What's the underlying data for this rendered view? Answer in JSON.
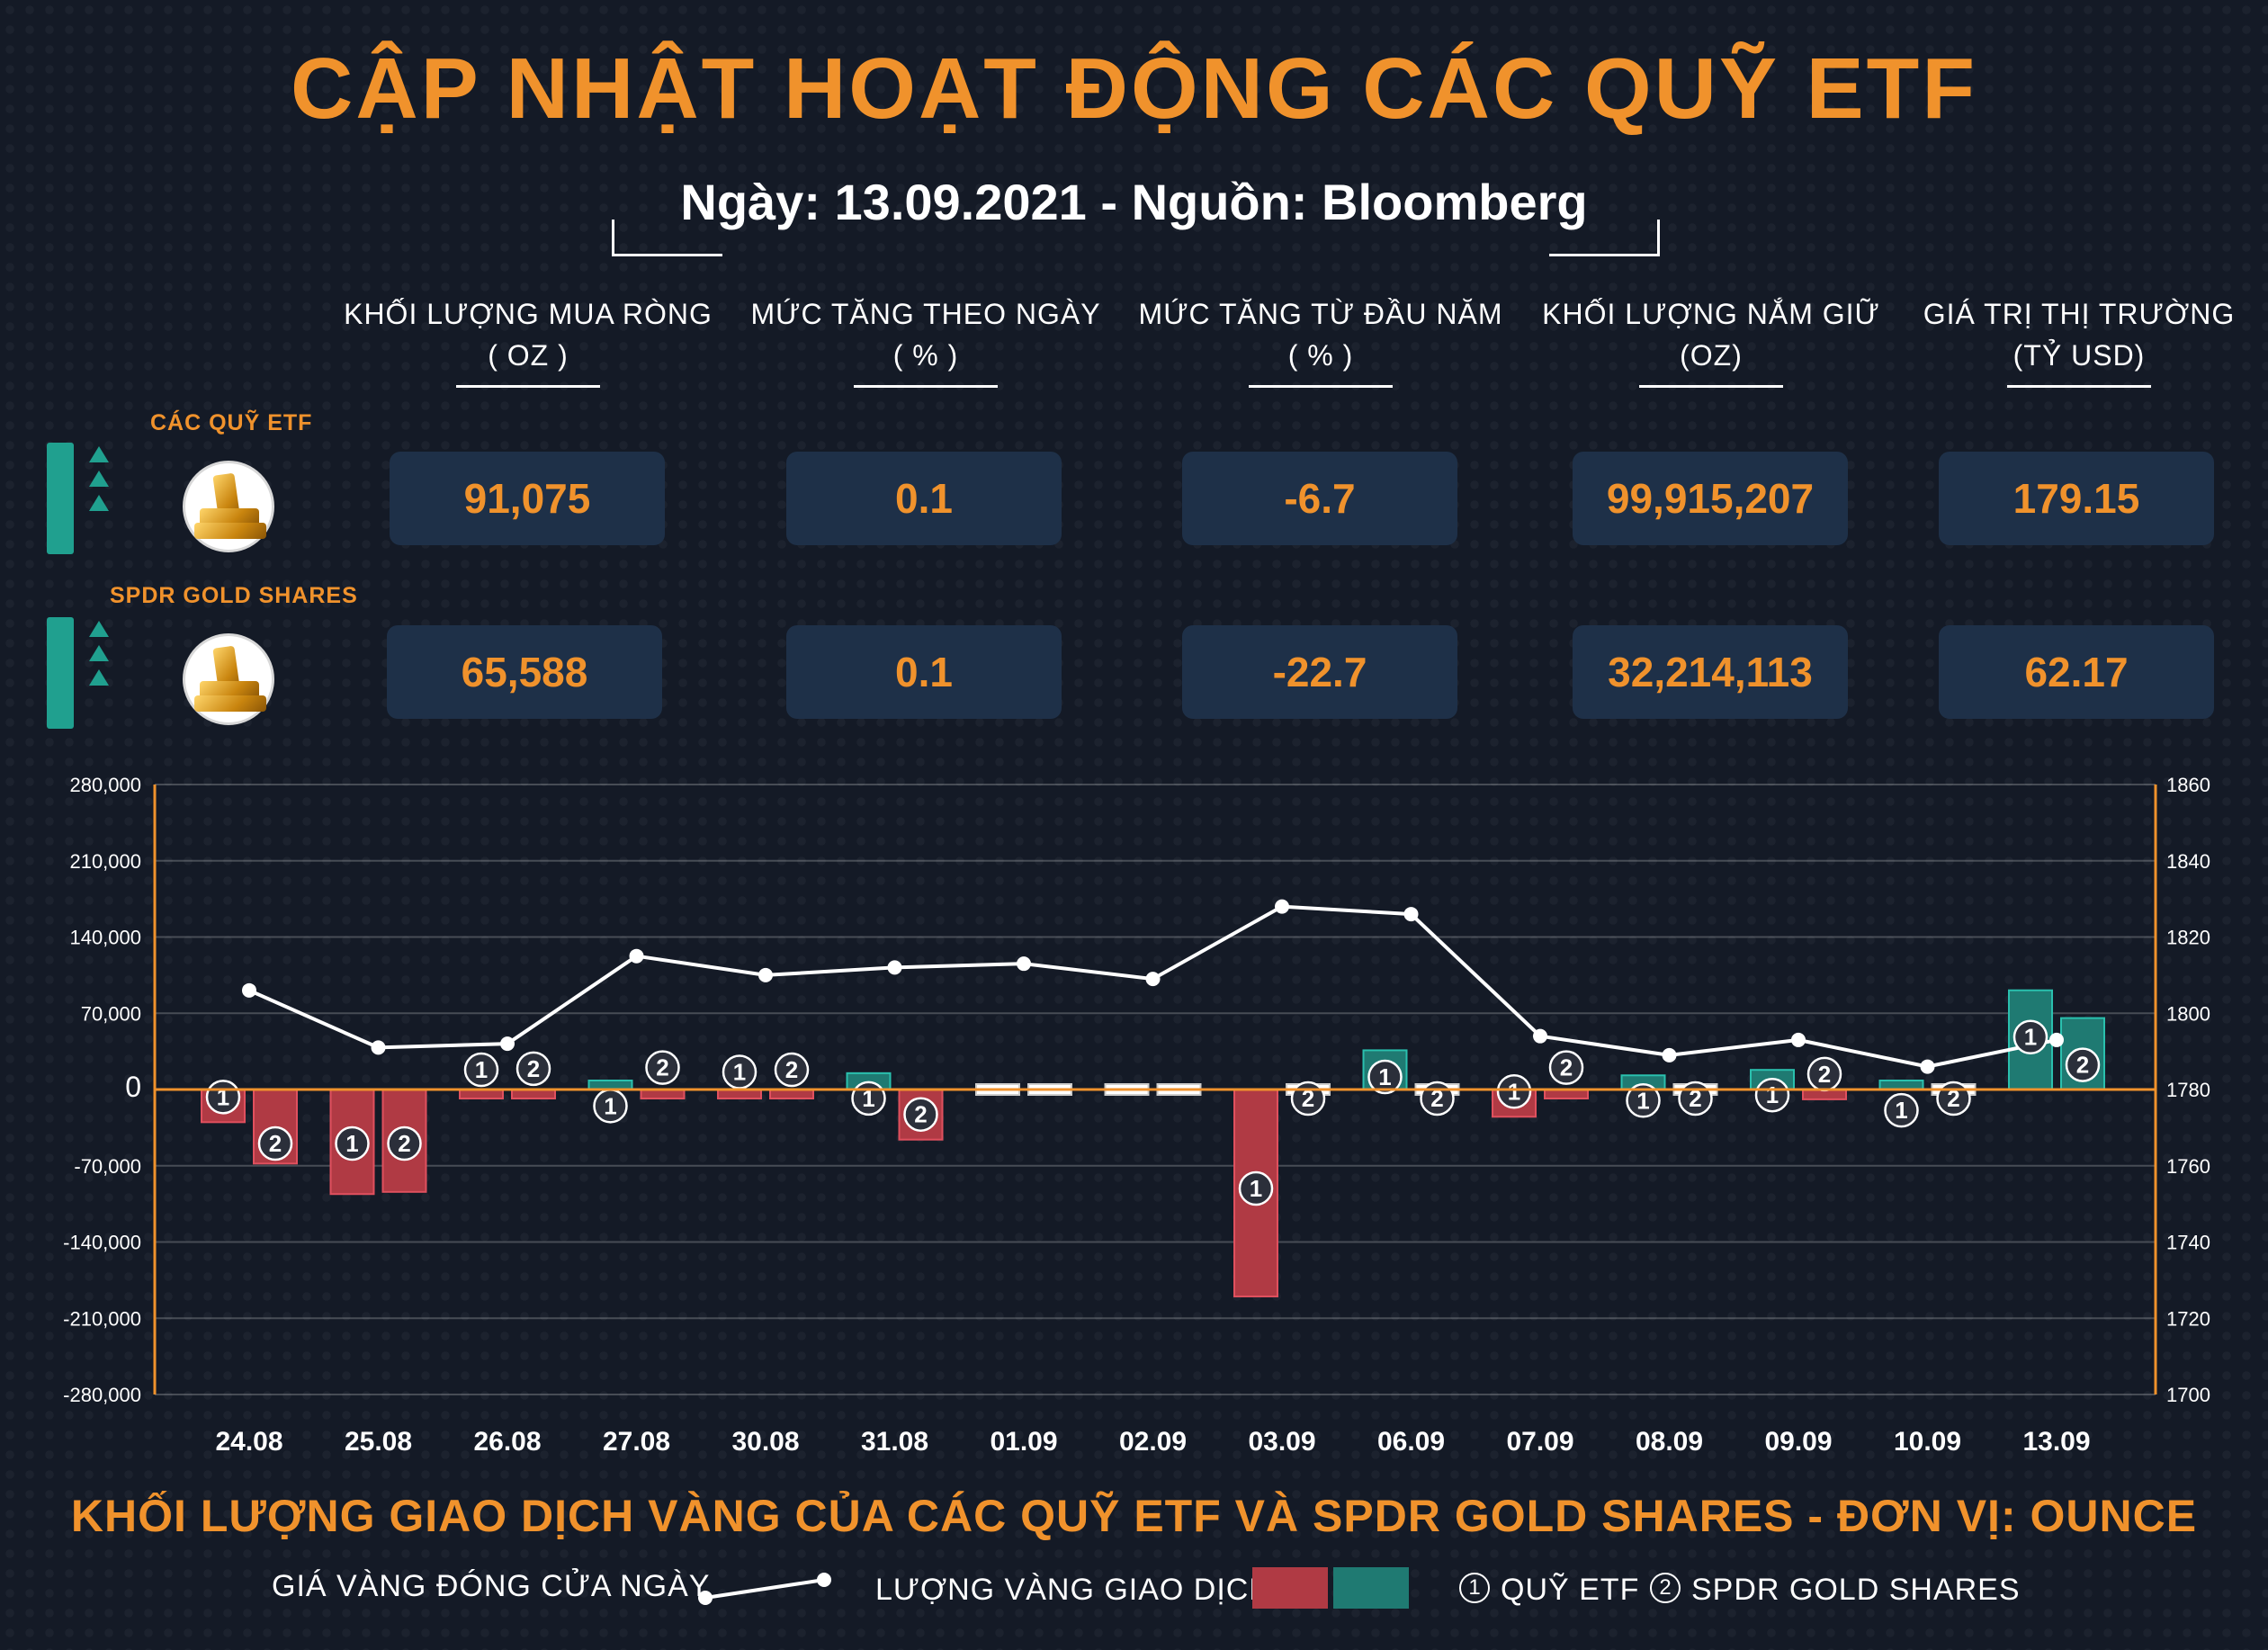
{
  "header": {
    "title": "CẬP NHẬT HOẠT ĐỘNG CÁC QUỸ ETF",
    "subtitle": "Ngày: 13.09.2021 - Nguồn: Bloomberg"
  },
  "columns": [
    {
      "line1": "KHỐI LƯỢNG MUA RÒNG",
      "line2": "( OZ )"
    },
    {
      "line1": "MỨC TĂNG THEO NGÀY",
      "line2": "( % )"
    },
    {
      "line1": "MỨC TĂNG TỪ ĐẦU NĂM",
      "line2": "( % )"
    },
    {
      "line1": "KHỐI LƯỢNG NẮM GIỮ",
      "line2": "(OZ)"
    },
    {
      "line1": "GIÁ TRỊ THỊ TRƯỜNG",
      "line2": "(TỶ USD)"
    }
  ],
  "rows": [
    {
      "label": "CÁC QUỸ ETF",
      "values": [
        "91,075",
        "0.1",
        "-6.7",
        "99,915,207",
        "179.15"
      ]
    },
    {
      "label": "SPDR GOLD SHARES",
      "values": [
        "65,588",
        "0.1",
        "-22.7",
        "32,214,113",
        "62.17"
      ]
    }
  ],
  "colors": {
    "accent": "#f0922c",
    "background": "#141a26",
    "box": "#1e3048",
    "buy": "#1f7a72",
    "sell": "#b03a44",
    "line": "#ffffff"
  },
  "chart_data": {
    "type": "bar",
    "title": "KHỐI LƯỢNG GIAO DỊCH VÀNG CỦA CÁC QUỸ ETF VÀ SPDR GOLD SHARES - ĐƠN VỊ: OUNCE",
    "categories": [
      "24.08",
      "25.08",
      "26.08",
      "27.08",
      "30.08",
      "31.08",
      "01.09",
      "02.09",
      "03.09",
      "06.09",
      "07.09",
      "08.09",
      "09.09",
      "10.09",
      "13.09"
    ],
    "series": [
      {
        "name": "QUỸ ETF",
        "marker": "1",
        "values": [
          -30000,
          -96000,
          -5000,
          8000,
          -7000,
          15000,
          0,
          0,
          -190000,
          36000,
          -25000,
          13000,
          18000,
          4000,
          91075
        ]
      },
      {
        "name": "SPDR GOLD SHARES",
        "marker": "2",
        "values": [
          -68000,
          -94000,
          -4000,
          -3000,
          -5000,
          -46000,
          0,
          0,
          0,
          0,
          -3000,
          0,
          -9000,
          0,
          65588
        ]
      }
    ],
    "line_series": {
      "name": "GIÁ VÀNG ĐÓNG CỬA NGÀY",
      "values": [
        1806,
        1791,
        1792,
        1815,
        1810,
        1812,
        1813,
        1809,
        1828,
        1826,
        1794,
        1789,
        1793,
        1786,
        1793
      ]
    },
    "y_left": {
      "ticks": [
        280000,
        210000,
        140000,
        70000,
        0,
        -70000,
        -140000,
        -210000,
        -280000
      ],
      "labels": [
        "280,000",
        "210,000",
        "140,000",
        "70,000",
        "0",
        "-70,000",
        "-140,000",
        "-210,000",
        "-280,000"
      ],
      "range": [
        -280000,
        280000
      ]
    },
    "y_right": {
      "ticks": [
        1860,
        1840,
        1820,
        1800,
        1780,
        1760,
        1740,
        1720,
        1700
      ],
      "labels": [
        "1860",
        "1840",
        "1820",
        "1800",
        "1780",
        "1760",
        "1740",
        "1720",
        "1700"
      ],
      "range": [
        1700,
        1860
      ]
    },
    "grid": true
  },
  "legend": {
    "price_label": "GIÁ VÀNG ĐÓNG CỬA NGÀY",
    "volume_label": "LƯỢNG VÀNG GIAO DỊCH",
    "etf_num": "1",
    "etf_label": "QUỸ ETF",
    "spdr_num": "2",
    "spdr_label": "SPDR GOLD SHARES"
  }
}
